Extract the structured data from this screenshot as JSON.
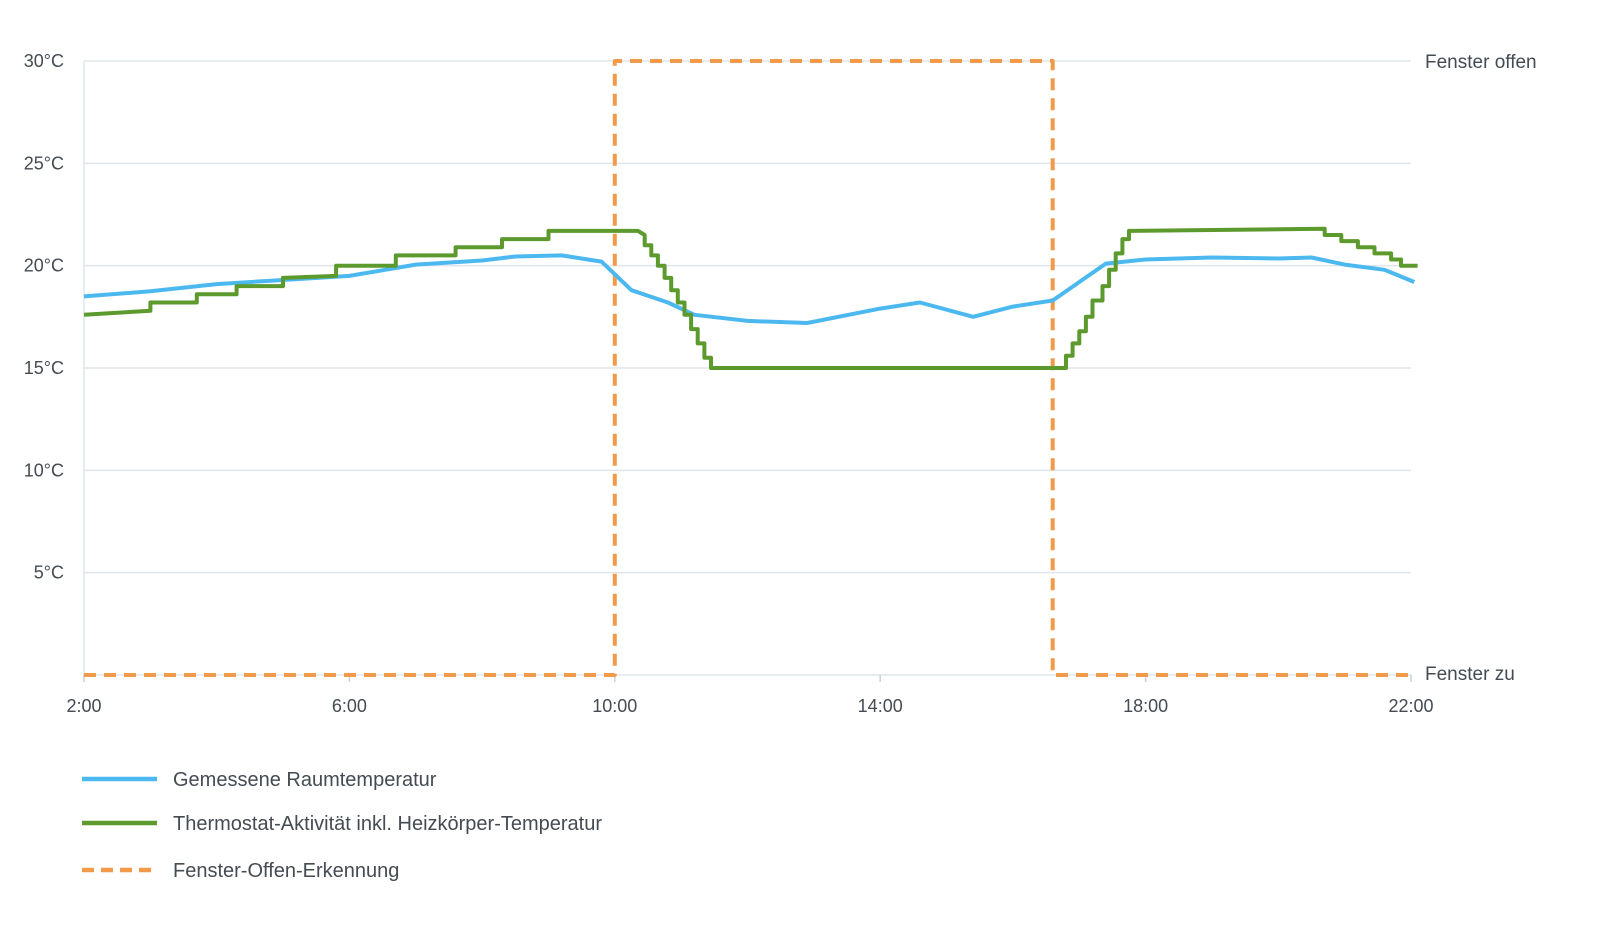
{
  "chart_data": {
    "type": "line",
    "x_ticks": [
      "2:00",
      "6:00",
      "10:00",
      "14:00",
      "18:00",
      "22:00"
    ],
    "y_ticks": [
      "5°C",
      "10°C",
      "15°C",
      "20°C",
      "25°C",
      "30°C"
    ],
    "y_tick_values": [
      5,
      10,
      15,
      20,
      25,
      30
    ],
    "ylim": [
      0,
      30
    ],
    "xlim_hours": [
      2,
      22
    ],
    "right_labels": {
      "top": "Fenster offen",
      "bottom": "Fenster zu"
    },
    "grid": true,
    "legend_position": "bottom-left",
    "series": [
      {
        "name": "Gemessene Raumtemperatur",
        "color": "#4cb8f0",
        "style": "solid",
        "points": [
          [
            2.0,
            18.5
          ],
          [
            3.0,
            18.75
          ],
          [
            4.0,
            19.1
          ],
          [
            5.0,
            19.3
          ],
          [
            6.0,
            19.5
          ],
          [
            7.0,
            20.05
          ],
          [
            8.0,
            20.25
          ],
          [
            8.5,
            20.45
          ],
          [
            9.2,
            20.5
          ],
          [
            9.8,
            20.2
          ],
          [
            10.25,
            18.8
          ],
          [
            10.8,
            18.2
          ],
          [
            11.2,
            17.6
          ],
          [
            12.0,
            17.3
          ],
          [
            12.9,
            17.2
          ],
          [
            14.0,
            17.9
          ],
          [
            14.6,
            18.2
          ],
          [
            15.4,
            17.5
          ],
          [
            16.0,
            18.0
          ],
          [
            16.6,
            18.3
          ],
          [
            17.4,
            20.1
          ],
          [
            18.0,
            20.3
          ],
          [
            19.0,
            20.4
          ],
          [
            20.0,
            20.35
          ],
          [
            20.5,
            20.4
          ],
          [
            21.0,
            20.05
          ],
          [
            21.6,
            19.8
          ],
          [
            22.05,
            19.2
          ]
        ]
      },
      {
        "name": "Thermostat-Aktivität inkl. Heizkörper-Temperatur",
        "color": "#5d9a2e",
        "style": "step",
        "points": [
          [
            2.0,
            17.6
          ],
          [
            3.0,
            17.8
          ],
          [
            3.0,
            18.2
          ],
          [
            3.7,
            18.2
          ],
          [
            3.7,
            18.6
          ],
          [
            4.3,
            18.6
          ],
          [
            4.3,
            19.0
          ],
          [
            5.0,
            19.0
          ],
          [
            5.0,
            19.4
          ],
          [
            5.8,
            19.5
          ],
          [
            5.8,
            20.0
          ],
          [
            6.7,
            20.0
          ],
          [
            6.7,
            20.5
          ],
          [
            7.6,
            20.5
          ],
          [
            7.6,
            20.9
          ],
          [
            8.3,
            20.9
          ],
          [
            8.3,
            21.3
          ],
          [
            9.0,
            21.3
          ],
          [
            9.0,
            21.7
          ],
          [
            10.35,
            21.7
          ],
          [
            10.45,
            21.5
          ],
          [
            10.45,
            21.0
          ],
          [
            10.55,
            21.0
          ],
          [
            10.55,
            20.5
          ],
          [
            10.65,
            20.5
          ],
          [
            10.65,
            20.0
          ],
          [
            10.75,
            20.0
          ],
          [
            10.75,
            19.4
          ],
          [
            10.85,
            19.4
          ],
          [
            10.85,
            18.8
          ],
          [
            10.95,
            18.8
          ],
          [
            10.95,
            18.2
          ],
          [
            11.05,
            18.2
          ],
          [
            11.05,
            17.6
          ],
          [
            11.15,
            17.6
          ],
          [
            11.15,
            16.9
          ],
          [
            11.25,
            16.9
          ],
          [
            11.25,
            16.2
          ],
          [
            11.35,
            16.2
          ],
          [
            11.35,
            15.5
          ],
          [
            11.45,
            15.5
          ],
          [
            11.45,
            15.0
          ],
          [
            16.8,
            15.0
          ],
          [
            16.8,
            15.6
          ],
          [
            16.9,
            15.6
          ],
          [
            16.9,
            16.2
          ],
          [
            17.0,
            16.2
          ],
          [
            17.0,
            16.8
          ],
          [
            17.1,
            16.8
          ],
          [
            17.1,
            17.5
          ],
          [
            17.2,
            17.5
          ],
          [
            17.2,
            18.3
          ],
          [
            17.35,
            18.3
          ],
          [
            17.35,
            19.0
          ],
          [
            17.45,
            19.0
          ],
          [
            17.45,
            19.8
          ],
          [
            17.55,
            19.8
          ],
          [
            17.55,
            20.6
          ],
          [
            17.65,
            20.6
          ],
          [
            17.65,
            21.3
          ],
          [
            17.75,
            21.3
          ],
          [
            17.75,
            21.7
          ],
          [
            20.7,
            21.8
          ],
          [
            20.7,
            21.5
          ],
          [
            20.95,
            21.5
          ],
          [
            20.95,
            21.2
          ],
          [
            21.2,
            21.2
          ],
          [
            21.2,
            20.9
          ],
          [
            21.45,
            20.9
          ],
          [
            21.45,
            20.6
          ],
          [
            21.7,
            20.6
          ],
          [
            21.7,
            20.3
          ],
          [
            21.85,
            20.3
          ],
          [
            21.85,
            20.0
          ],
          [
            22.1,
            20.0
          ]
        ]
      },
      {
        "name": "Fenster-Offen-Erkennung",
        "color": "#f39a4a",
        "style": "dashed",
        "points": [
          [
            2.0,
            0
          ],
          [
            10.0,
            0
          ],
          [
            10.0,
            30
          ],
          [
            16.6,
            30
          ],
          [
            16.6,
            0
          ],
          [
            22.05,
            0
          ]
        ]
      }
    ]
  }
}
